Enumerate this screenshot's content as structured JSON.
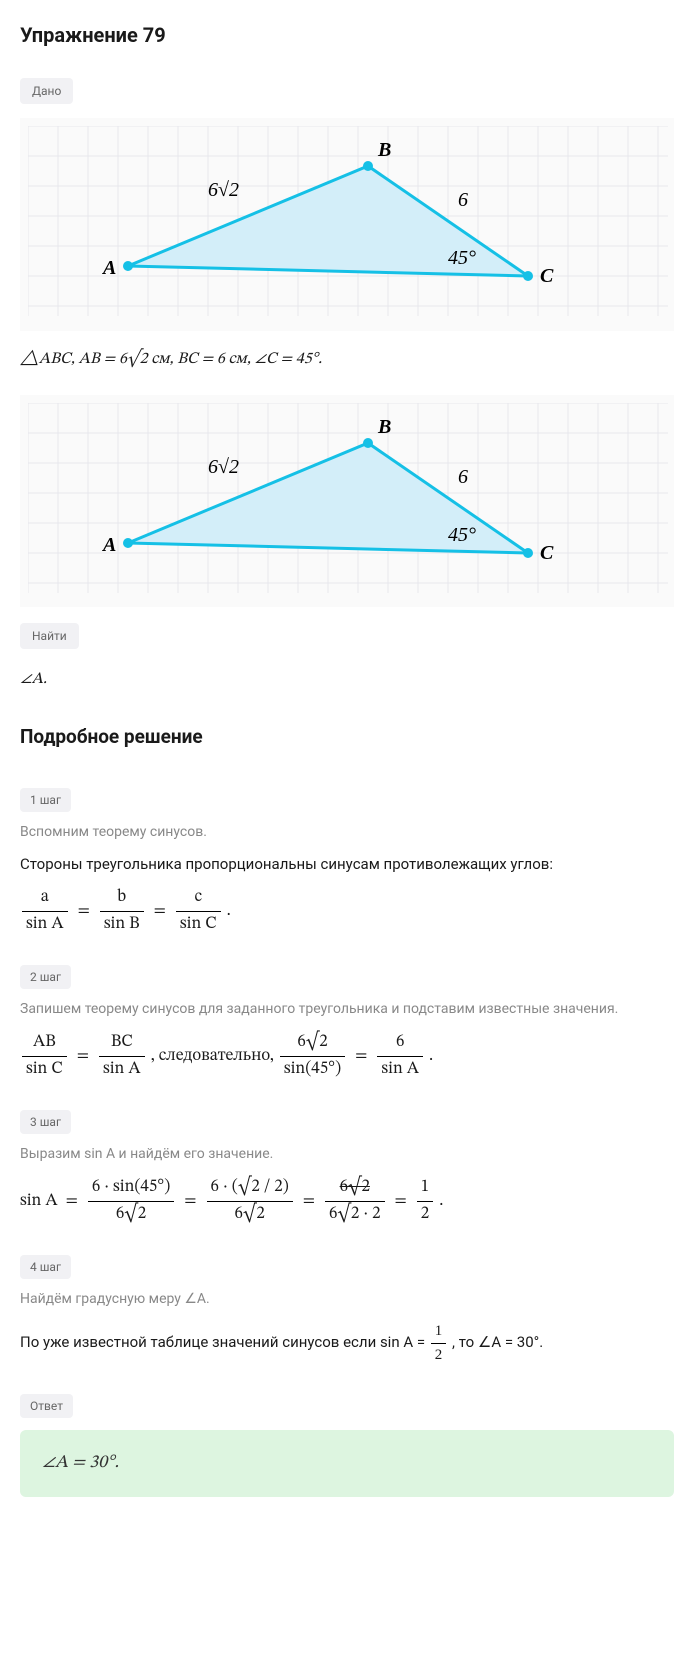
{
  "title": "Упражнение 79",
  "given_label": "Дано",
  "diagram": {
    "grid_color": "#e8e8ec",
    "triangle_fill": "#d3eef9",
    "triangle_stroke": "#15c0e6",
    "vertex_A": "A",
    "vertex_B": "B",
    "vertex_C": "C",
    "side_AB_label": "6√2",
    "side_BC_label": "6",
    "angle_C_label": "45°",
    "points": {
      "A": [
        100,
        140
      ],
      "B": [
        340,
        40
      ],
      "C": [
        500,
        150
      ]
    }
  },
  "given_text_prefix": "△ABC, AB = 6√2 см, BC = 6 см, ∠C = 45°.",
  "find_label": "Найти",
  "find_text": "∠A.",
  "solution_title": "Подробное решение",
  "steps": [
    {
      "label": "1 шаг",
      "intro": "Вспомним теорему синусов.",
      "body": "Стороны треугольника пропорциональны синусам противолежащих углов:",
      "formula_parts": [
        "a",
        "sin A",
        "b",
        "sin B",
        "c",
        "sin C"
      ]
    },
    {
      "label": "2 шаг",
      "intro": "Запишем теорему синусов для заданного треугольника и подставим известные значения.",
      "body": "",
      "formula_text_mid": ", следовательно, ",
      "formula_parts": [
        "AB",
        "sin C",
        "BC",
        "sin A",
        "6√2",
        "sin(45°)",
        "6",
        "sin A"
      ]
    },
    {
      "label": "3 шаг",
      "intro": "Выразим sin A и найдём его значение.",
      "body": "",
      "formula_parts": [
        "sin A",
        "6 · sin(45°)",
        "6√2",
        "6 · (√2 / 2)",
        "6√2",
        "6√2",
        "6√2 · 2",
        "1",
        "2"
      ]
    },
    {
      "label": "4 шаг",
      "intro": "Найдём градусную меру ∠A.",
      "body_prefix": "По уже известной таблице значений синусов если sin A = ",
      "body_mid_frac": [
        "1",
        "2"
      ],
      "body_suffix": ", то ∠A = 30°."
    }
  ],
  "answer_label": "Ответ",
  "answer_text": "∠A = 30°.",
  "colors": {
    "pill_bg": "#f1f1f4",
    "pill_text": "#666666",
    "answer_bg": "#ddf5e0",
    "text_gray": "#888888"
  }
}
